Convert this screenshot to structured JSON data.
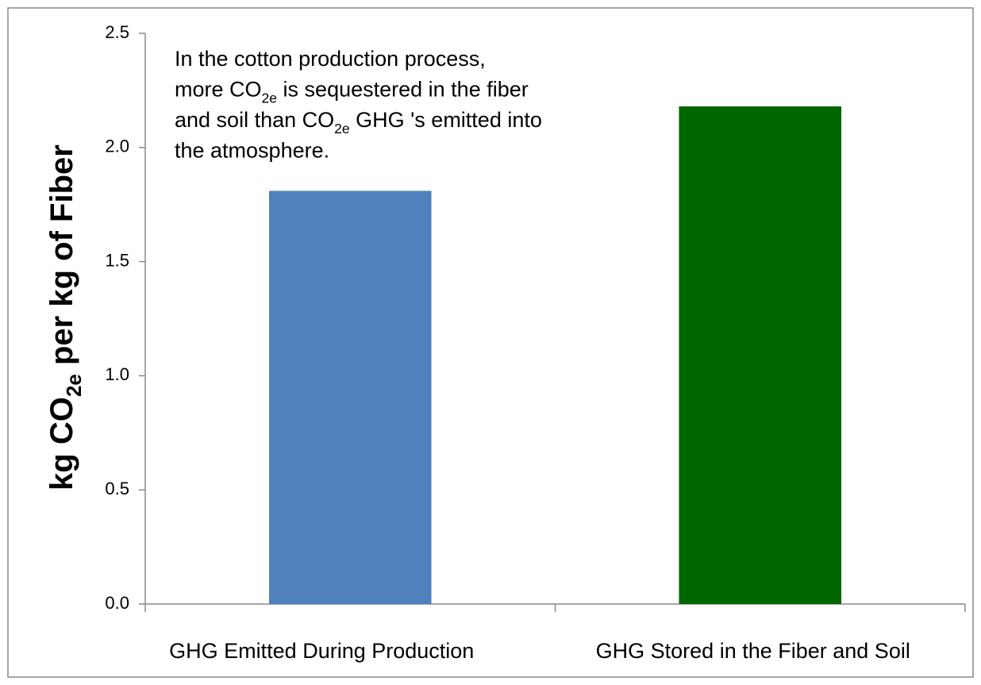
{
  "chart_data": {
    "type": "bar",
    "y_label": [
      {
        "text": "kg CO"
      },
      {
        "sub": "2e"
      },
      {
        "text": " per kg of Fiber"
      }
    ],
    "annotation": [
      [
        {
          "text": "In the cotton production process,"
        }
      ],
      [
        {
          "text": "more CO"
        },
        {
          "sub": "2e"
        },
        {
          "text": " is sequestered in the fiber"
        }
      ],
      [
        {
          "text": "and soil than CO"
        },
        {
          "sub": "2e"
        },
        {
          "text": " GHG 's emitted into"
        }
      ],
      [
        {
          "text": "the atmosphere."
        }
      ]
    ],
    "categories": [
      "GHG Emitted During Production",
      "GHG Stored in the Fiber and Soil"
    ],
    "values": [
      1.81,
      2.18
    ],
    "colors": [
      "#4f81bd",
      "#006600"
    ],
    "ylim": [
      0,
      2.5
    ],
    "yticks": [
      {
        "value": 0,
        "label": "0.0"
      },
      0.5,
      {
        "value": 1,
        "label": "1.0"
      },
      1.5,
      {
        "value": 2,
        "label": "2.0"
      },
      2.5
    ],
    "grid": false
  }
}
